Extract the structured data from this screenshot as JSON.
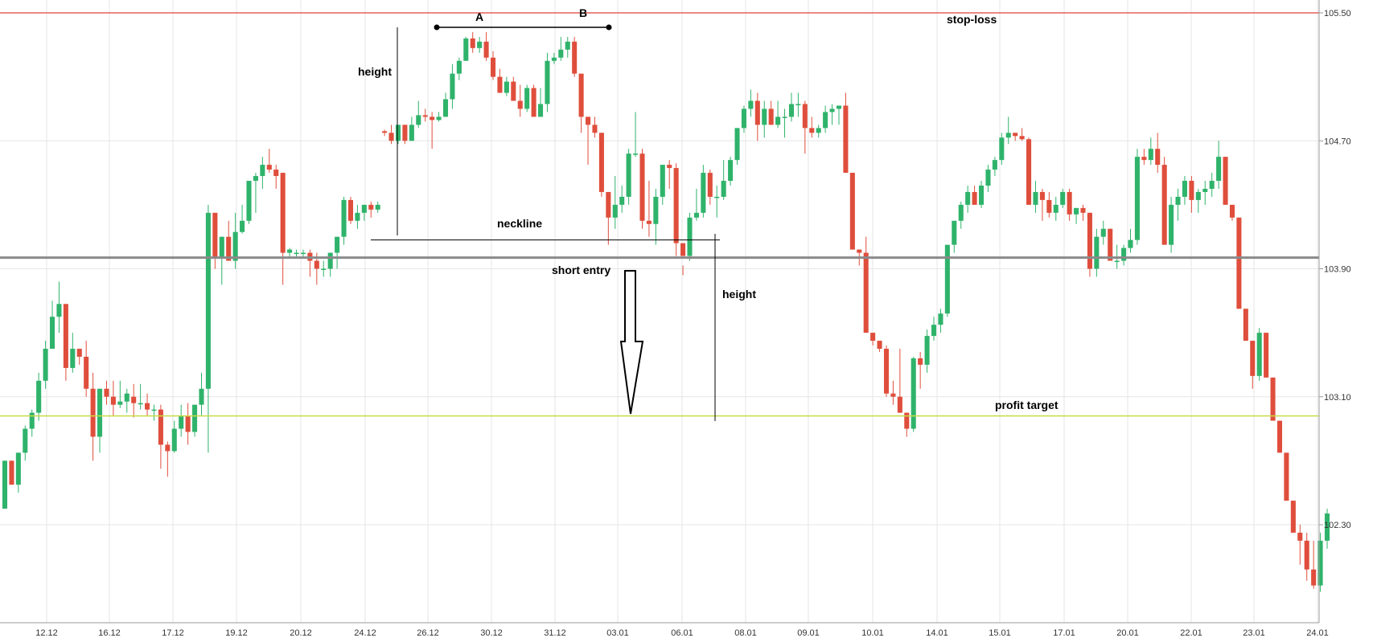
{
  "chart_data": {
    "type": "candlestick",
    "y_axis": {
      "ticks": [
        "105.50",
        "104.70",
        "103.90",
        "103.10",
        "102.30"
      ],
      "range": [
        101.7,
        105.58
      ]
    },
    "x_axis": {
      "ticks": [
        "12.12",
        "16.12",
        "17.12",
        "19.12",
        "20.12",
        "24.12",
        "26.12",
        "30.12",
        "31.12",
        "03.01",
        "06.01",
        "08.01",
        "09.01",
        "10.01",
        "14.01",
        "15.01",
        "17.01",
        "20.01",
        "22.01",
        "23.01",
        "24.01"
      ]
    },
    "levels": {
      "stop_loss": {
        "label": "stop-loss",
        "price": 105.5,
        "color": "#e0413a"
      },
      "entry": {
        "price": 103.97,
        "color": "#8a8a8a"
      },
      "profit_target": {
        "label": "profit target",
        "price": 102.98,
        "color": "#c8dc46"
      }
    },
    "annotations": {
      "point_a": "A",
      "point_b": "B",
      "height_top": "height",
      "neckline": "neckline",
      "short_entry": "short entry",
      "height_bottom": "height",
      "neckline_price": 104.08
    },
    "colors": {
      "up": "#2fb36b",
      "down": "#df4e3c",
      "grid": "#e6e6e6"
    },
    "candles_ohlc": [
      [
        102.4,
        102.7,
        102.4,
        102.7
      ],
      [
        102.7,
        102.7,
        102.55,
        102.55
      ],
      [
        102.55,
        102.75,
        102.5,
        102.75
      ],
      [
        102.75,
        102.92,
        102.7,
        102.9
      ],
      [
        102.9,
        103.02,
        102.85,
        103.0
      ],
      [
        103.0,
        103.25,
        102.95,
        103.2
      ],
      [
        103.2,
        103.45,
        103.15,
        103.4
      ],
      [
        103.4,
        103.7,
        103.4,
        103.6
      ],
      [
        103.6,
        103.82,
        103.5,
        103.68
      ],
      [
        103.68,
        103.68,
        103.2,
        103.28
      ],
      [
        103.28,
        103.5,
        103.25,
        103.4
      ],
      [
        103.4,
        103.4,
        103.3,
        103.35
      ],
      [
        103.35,
        103.45,
        103.1,
        103.15
      ],
      [
        103.15,
        103.25,
        102.7,
        102.85
      ],
      [
        102.85,
        103.15,
        102.75,
        103.15
      ],
      [
        103.15,
        103.2,
        103.05,
        103.1
      ],
      [
        103.1,
        103.2,
        102.98,
        103.05
      ],
      [
        103.05,
        103.2,
        103.03,
        103.07
      ],
      [
        103.07,
        103.15,
        103.0,
        103.12
      ],
      [
        103.1,
        103.18,
        102.97,
        103.06
      ],
      [
        103.06,
        103.18,
        103.02,
        103.06
      ],
      [
        103.06,
        103.12,
        102.98,
        103.02
      ],
      [
        103.02,
        103.05,
        102.95,
        103.02
      ],
      [
        103.02,
        103.05,
        102.65,
        102.8
      ],
      [
        102.8,
        102.82,
        102.6,
        102.76
      ],
      [
        102.76,
        102.95,
        102.75,
        102.9
      ],
      [
        102.9,
        103.05,
        102.85,
        102.98
      ],
      [
        102.98,
        103.06,
        102.8,
        102.88
      ],
      [
        102.88,
        103.05,
        102.85,
        103.05
      ],
      [
        103.05,
        103.25,
        102.98,
        103.15
      ],
      [
        103.15,
        104.3,
        102.75,
        104.25
      ],
      [
        104.25,
        104.25,
        103.9,
        103.97
      ],
      [
        103.97,
        104.1,
        103.8,
        104.1
      ],
      [
        104.1,
        104.2,
        103.95,
        103.95
      ],
      [
        103.95,
        104.25,
        103.9,
        104.13
      ],
      [
        104.13,
        104.3,
        104.12,
        104.2
      ],
      [
        104.2,
        104.45,
        104.18,
        104.45
      ],
      [
        104.45,
        104.5,
        104.25,
        104.48
      ],
      [
        104.48,
        104.6,
        104.4,
        104.55
      ],
      [
        104.55,
        104.65,
        104.5,
        104.52
      ],
      [
        104.52,
        104.55,
        104.4,
        104.48
      ],
      [
        104.5,
        104.5,
        103.8,
        104.0
      ],
      [
        104.0,
        104.03,
        103.97,
        104.02
      ],
      [
        104.0,
        104.02,
        103.97,
        104.0
      ],
      [
        104.0,
        104.02,
        103.97,
        104.0
      ],
      [
        104.0,
        104.02,
        103.85,
        103.95
      ],
      [
        103.95,
        104.0,
        103.8,
        103.9
      ],
      [
        103.9,
        103.95,
        103.85,
        103.9
      ],
      [
        103.9,
        104.0,
        103.85,
        104.0
      ],
      [
        104.0,
        104.1,
        103.9,
        104.1
      ],
      [
        104.1,
        104.35,
        104.05,
        104.33
      ],
      [
        104.33,
        104.35,
        104.18,
        104.2
      ],
      [
        104.2,
        104.3,
        104.15,
        104.25
      ],
      [
        104.25,
        104.3,
        104.2,
        104.3
      ],
      [
        104.3,
        104.32,
        104.22,
        104.27
      ],
      [
        104.27,
        104.32,
        104.25,
        104.3
      ],
      [
        104.76,
        104.77,
        104.73,
        104.75
      ],
      [
        104.75,
        104.8,
        104.68,
        104.7
      ],
      [
        104.7,
        104.8,
        104.68,
        104.8
      ],
      [
        104.8,
        104.8,
        104.68,
        104.7
      ],
      [
        104.7,
        104.85,
        104.7,
        104.8
      ],
      [
        104.8,
        104.95,
        104.78,
        104.86
      ],
      [
        104.86,
        104.9,
        104.82,
        104.85
      ],
      [
        104.85,
        104.88,
        104.65,
        104.83
      ],
      [
        104.83,
        104.88,
        104.82,
        104.85
      ],
      [
        104.85,
        105.0,
        104.85,
        104.96
      ],
      [
        104.96,
        105.18,
        104.9,
        105.12
      ],
      [
        105.12,
        105.22,
        105.08,
        105.2
      ],
      [
        105.2,
        105.35,
        105.2,
        105.34
      ],
      [
        105.34,
        105.38,
        105.25,
        105.28
      ],
      [
        105.28,
        105.35,
        105.25,
        105.32
      ],
      [
        105.32,
        105.38,
        105.2,
        105.22
      ],
      [
        105.22,
        105.26,
        105.08,
        105.1
      ],
      [
        105.1,
        105.15,
        105.0,
        105.0
      ],
      [
        105.0,
        105.1,
        104.98,
        105.07
      ],
      [
        105.07,
        105.1,
        104.95,
        104.95
      ],
      [
        104.95,
        105.05,
        104.85,
        104.9
      ],
      [
        104.9,
        105.05,
        104.88,
        105.03
      ],
      [
        105.03,
        105.05,
        104.85,
        104.85
      ],
      [
        104.85,
        105.03,
        104.85,
        104.93
      ],
      [
        104.93,
        105.25,
        104.88,
        105.2
      ],
      [
        105.2,
        105.25,
        105.18,
        105.22
      ],
      [
        105.22,
        105.35,
        105.2,
        105.27
      ],
      [
        105.27,
        105.35,
        105.22,
        105.32
      ],
      [
        105.32,
        105.35,
        105.1,
        105.12
      ],
      [
        105.12,
        105.12,
        104.75,
        104.85
      ],
      [
        104.85,
        104.85,
        104.55,
        104.8
      ],
      [
        104.8,
        104.85,
        104.72,
        104.75
      ],
      [
        104.75,
        104.75,
        104.35,
        104.38
      ],
      [
        104.38,
        104.38,
        104.05,
        104.22
      ],
      [
        104.22,
        104.48,
        104.15,
        104.3
      ],
      [
        104.3,
        104.42,
        104.25,
        104.35
      ],
      [
        104.35,
        104.65,
        104.3,
        104.62
      ],
      [
        104.62,
        104.88,
        104.6,
        104.62
      ],
      [
        104.62,
        104.65,
        104.15,
        104.2
      ],
      [
        104.2,
        104.45,
        104.1,
        104.18
      ],
      [
        104.18,
        104.4,
        104.05,
        104.35
      ],
      [
        104.35,
        104.55,
        104.3,
        104.55
      ],
      [
        104.55,
        104.58,
        104.4,
        104.53
      ],
      [
        104.53,
        104.56,
        103.98,
        104.06
      ],
      [
        104.06,
        103.92,
        103.86,
        103.98
      ],
      [
        103.98,
        104.25,
        103.95,
        104.22
      ],
      [
        104.22,
        104.4,
        104.2,
        104.25
      ],
      [
        104.25,
        104.55,
        104.22,
        104.5
      ],
      [
        104.5,
        104.52,
        104.3,
        104.35
      ],
      [
        104.35,
        104.42,
        104.22,
        104.35
      ],
      [
        104.35,
        104.58,
        104.33,
        104.45
      ],
      [
        104.45,
        104.6,
        104.42,
        104.58
      ],
      [
        104.58,
        104.75,
        104.55,
        104.78
      ],
      [
        104.78,
        104.92,
        104.75,
        104.9
      ],
      [
        104.9,
        105.02,
        104.85,
        104.95
      ],
      [
        104.95,
        105.0,
        104.7,
        104.8
      ],
      [
        104.8,
        104.95,
        104.72,
        104.9
      ],
      [
        104.9,
        104.95,
        104.8,
        104.8
      ],
      [
        104.8,
        104.95,
        104.78,
        104.85
      ],
      [
        104.85,
        104.9,
        104.72,
        104.85
      ],
      [
        104.85,
        105.0,
        104.82,
        104.93
      ],
      [
        104.93,
        105.0,
        104.85,
        104.93
      ],
      [
        104.93,
        104.95,
        104.62,
        104.78
      ],
      [
        104.78,
        104.85,
        104.72,
        104.75
      ],
      [
        104.75,
        104.8,
        104.72,
        104.78
      ],
      [
        104.78,
        104.92,
        104.75,
        104.88
      ],
      [
        104.88,
        104.93,
        104.8,
        104.9
      ],
      [
        104.9,
        104.92,
        104.8,
        104.92
      ],
      [
        104.92,
        105.0,
        104.5,
        104.5
      ],
      [
        104.5,
        104.5,
        104.08,
        104.02
      ],
      [
        104.02,
        104.02,
        103.92,
        104.0
      ],
      [
        104.0,
        104.1,
        103.5,
        103.5
      ],
      [
        103.5,
        103.5,
        103.42,
        103.45
      ],
      [
        103.45,
        103.45,
        103.38,
        103.4
      ],
      [
        103.4,
        103.42,
        103.1,
        103.12
      ],
      [
        103.12,
        103.2,
        103.05,
        103.1
      ],
      [
        103.1,
        103.4,
        103.0,
        103.0
      ],
      [
        103.0,
        103.0,
        102.85,
        102.9
      ],
      [
        102.9,
        103.35,
        102.88,
        103.34
      ],
      [
        103.34,
        103.38,
        103.15,
        103.3
      ],
      [
        103.3,
        103.52,
        103.25,
        103.48
      ],
      [
        103.48,
        103.6,
        103.45,
        103.55
      ],
      [
        103.55,
        103.65,
        103.5,
        103.62
      ],
      [
        103.62,
        104.0,
        103.6,
        104.05
      ],
      [
        104.05,
        104.2,
        104.0,
        104.2
      ],
      [
        104.2,
        104.32,
        104.15,
        104.3
      ],
      [
        104.3,
        104.42,
        104.25,
        104.38
      ],
      [
        104.38,
        104.42,
        104.3,
        104.3
      ],
      [
        104.3,
        104.45,
        104.28,
        104.42
      ],
      [
        104.42,
        104.55,
        104.38,
        104.52
      ],
      [
        104.52,
        104.6,
        104.48,
        104.58
      ],
      [
        104.58,
        104.75,
        104.55,
        104.72
      ],
      [
        104.72,
        104.85,
        104.68,
        104.75
      ],
      [
        104.75,
        104.75,
        104.7,
        104.73
      ],
      [
        104.73,
        104.78,
        104.7,
        104.71
      ],
      [
        104.71,
        104.72,
        104.3,
        104.3
      ],
      [
        104.3,
        104.45,
        104.25,
        104.38
      ],
      [
        104.38,
        104.4,
        104.2,
        104.33
      ],
      [
        104.33,
        104.38,
        104.22,
        104.25
      ],
      [
        104.25,
        104.35,
        104.2,
        104.3
      ],
      [
        104.3,
        104.4,
        104.28,
        104.38
      ],
      [
        104.38,
        104.4,
        104.2,
        104.24
      ],
      [
        104.24,
        104.28,
        104.18,
        104.28
      ],
      [
        104.28,
        104.3,
        104.2,
        104.25
      ],
      [
        104.25,
        104.25,
        103.85,
        103.9
      ],
      [
        103.9,
        104.15,
        103.85,
        104.1
      ],
      [
        104.1,
        104.2,
        104.05,
        104.15
      ],
      [
        104.15,
        104.15,
        103.95,
        103.95
      ],
      [
        103.95,
        104.05,
        103.9,
        103.95
      ],
      [
        103.95,
        104.05,
        103.92,
        104.03
      ],
      [
        104.03,
        104.15,
        104.0,
        104.08
      ],
      [
        104.08,
        104.65,
        104.05,
        104.6
      ],
      [
        104.6,
        104.65,
        104.55,
        104.58
      ],
      [
        104.58,
        104.72,
        104.55,
        104.65
      ],
      [
        104.65,
        104.75,
        104.5,
        104.55
      ],
      [
        104.55,
        104.6,
        104.05,
        104.05
      ],
      [
        104.05,
        104.35,
        104.0,
        104.3
      ],
      [
        104.3,
        104.4,
        104.2,
        104.35
      ],
      [
        104.35,
        104.48,
        104.3,
        104.45
      ],
      [
        104.45,
        104.48,
        104.25,
        104.33
      ],
      [
        104.33,
        104.4,
        104.25,
        104.38
      ],
      [
        104.38,
        104.45,
        104.3,
        104.4
      ],
      [
        104.4,
        104.5,
        104.35,
        104.45
      ],
      [
        104.45,
        104.7,
        104.4,
        104.6
      ],
      [
        104.6,
        104.6,
        104.3,
        104.3
      ],
      [
        104.3,
        104.3,
        104.2,
        104.22
      ],
      [
        104.22,
        104.22,
        103.65,
        103.65
      ],
      [
        103.65,
        103.65,
        103.45,
        103.45
      ],
      [
        103.45,
        103.45,
        103.15,
        103.23
      ],
      [
        103.23,
        103.53,
        103.2,
        103.5
      ],
      [
        103.5,
        103.5,
        103.22,
        103.22
      ],
      [
        103.22,
        103.22,
        102.98,
        102.95
      ],
      [
        102.95,
        102.95,
        102.75,
        102.75
      ],
      [
        102.75,
        102.75,
        102.45,
        102.45
      ],
      [
        102.45,
        102.45,
        102.25,
        102.25
      ],
      [
        102.25,
        102.3,
        102.05,
        102.2
      ],
      [
        102.2,
        102.25,
        101.95,
        102.02
      ],
      [
        102.02,
        102.2,
        101.9,
        101.92
      ],
      [
        101.92,
        102.25,
        101.88,
        102.2
      ],
      [
        102.2,
        102.4,
        102.15,
        102.37
      ]
    ]
  }
}
